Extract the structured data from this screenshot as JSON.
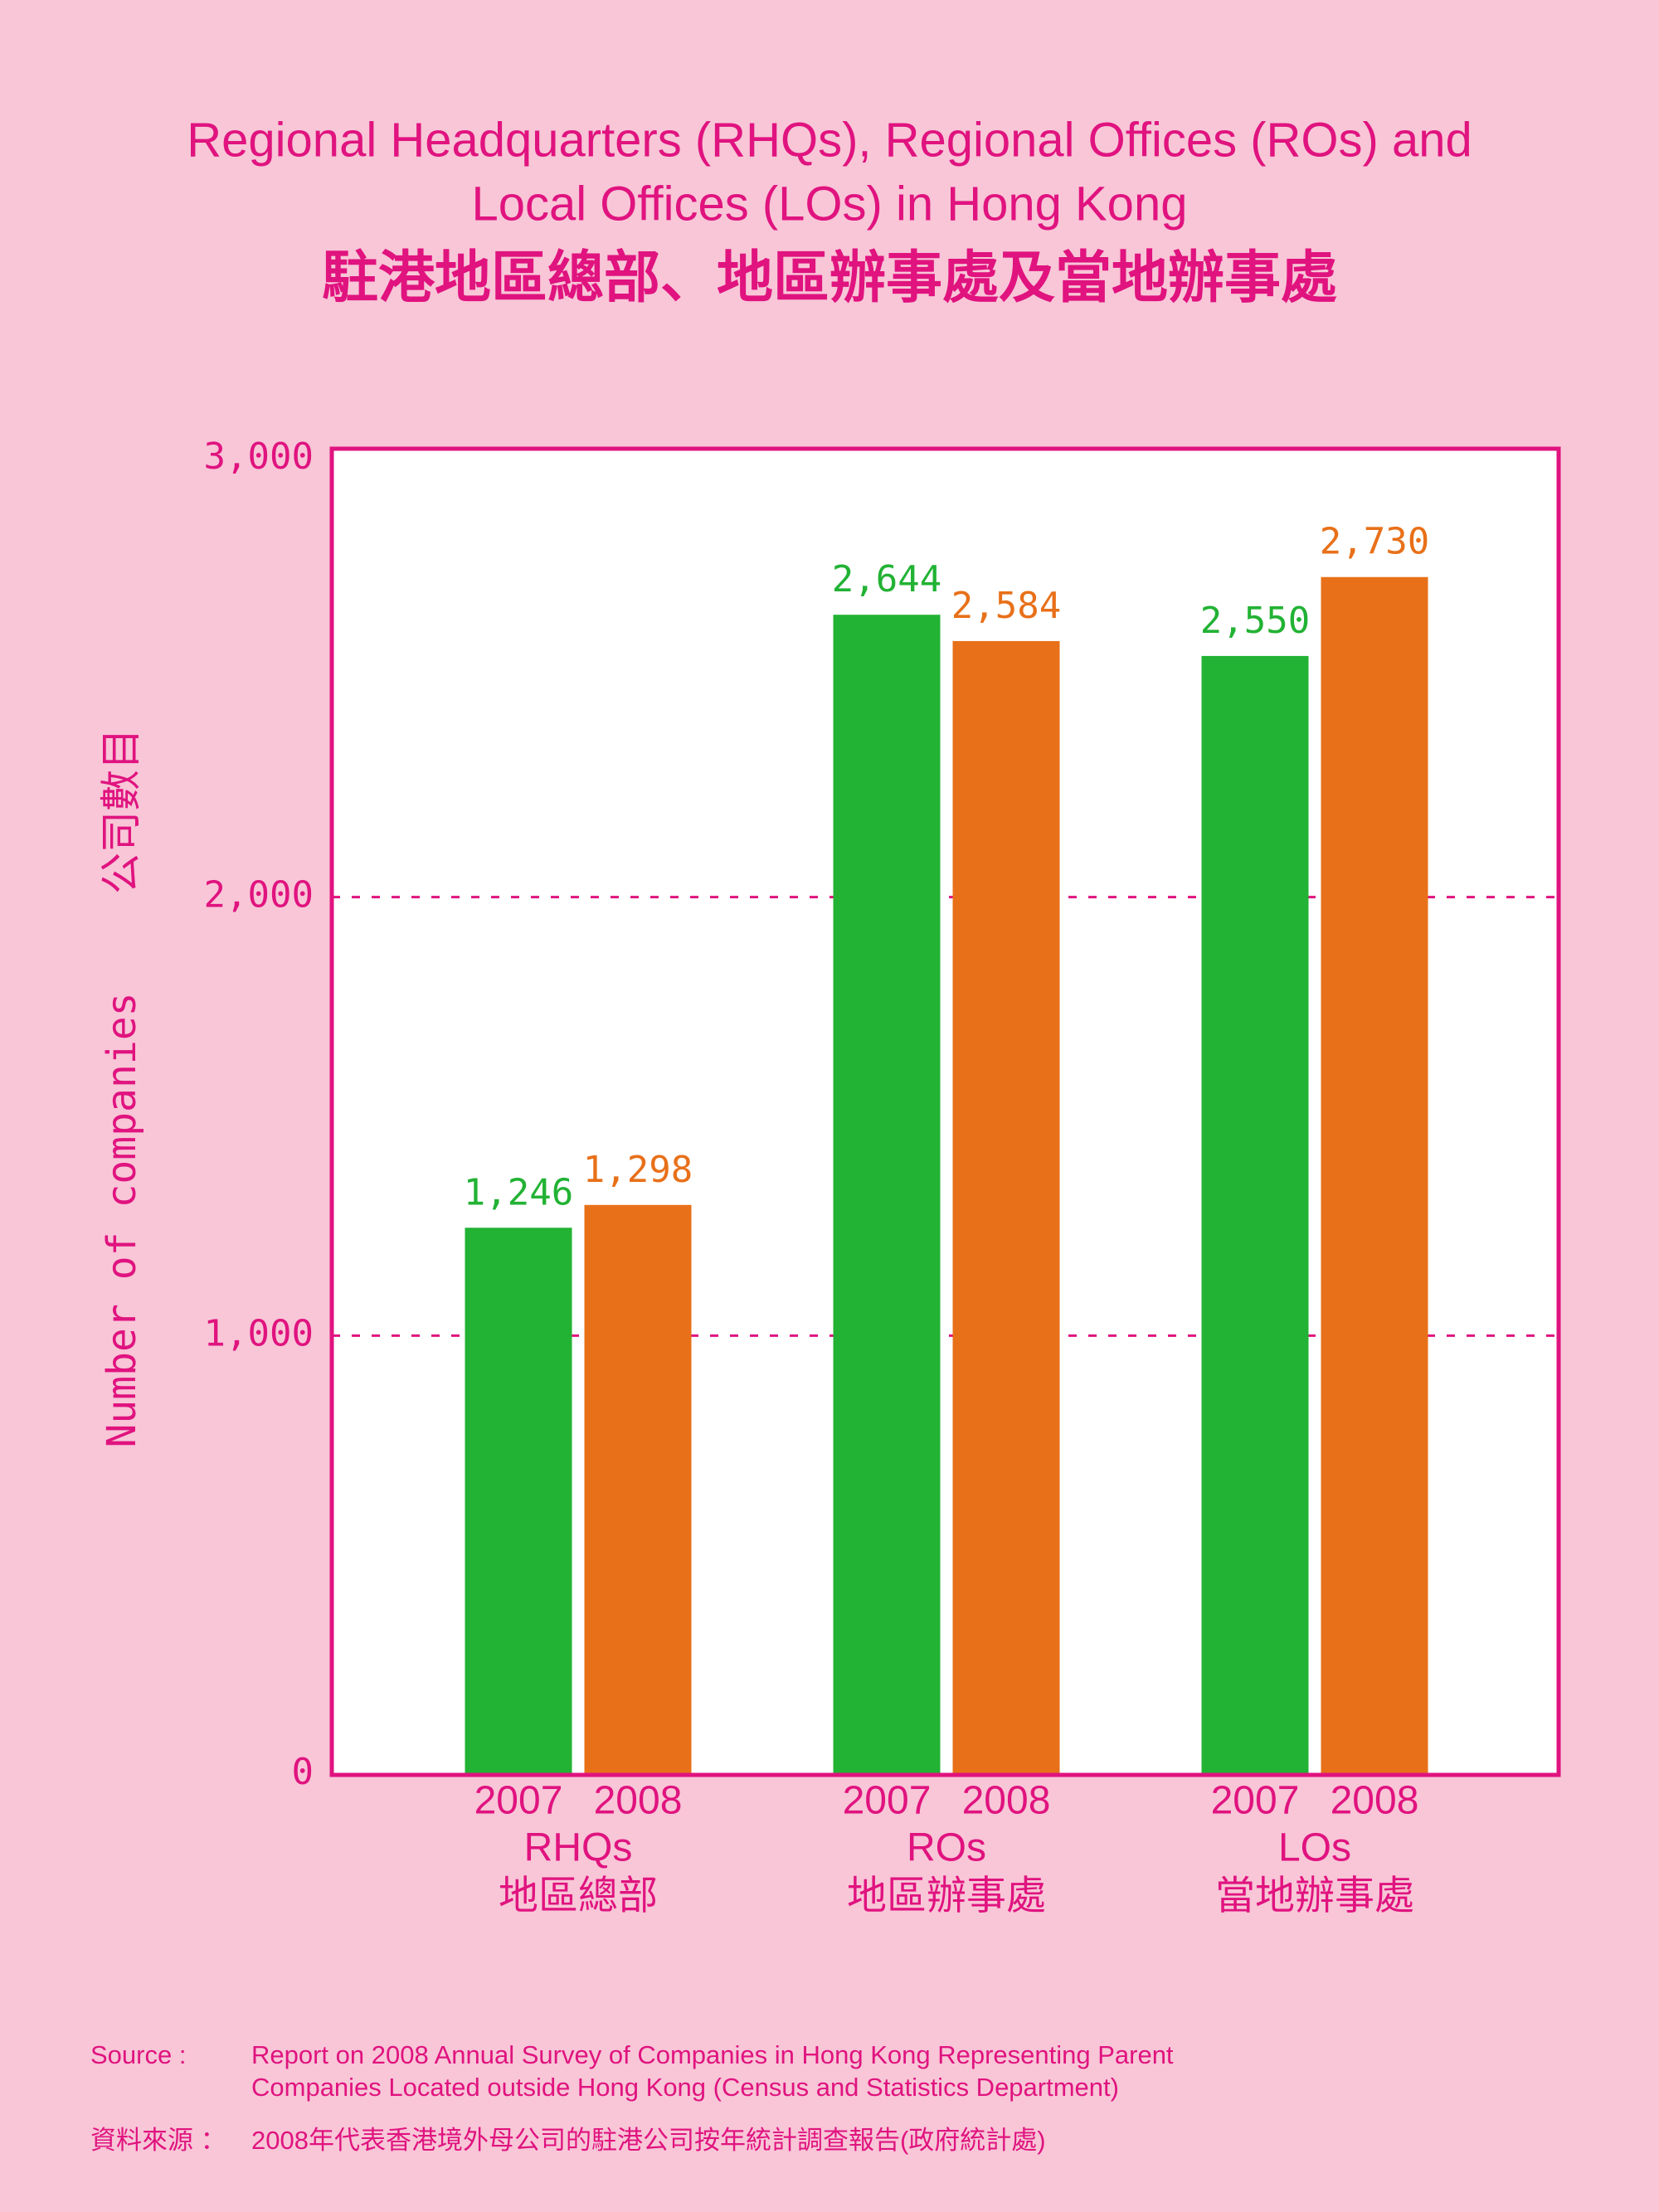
{
  "chart_data": {
    "type": "bar",
    "title": "Regional Headquarters (RHQs), Regional Offices (ROs) and",
    "title_line2": "Local Offices (LOs) in Hong Kong",
    "title_zh": "駐港地區總部、地區辦事處及當地辦事處",
    "y_label": "Number of companies",
    "y_label_zh": "公司數目",
    "categories": [
      "RHQs",
      "ROs",
      "LOs"
    ],
    "categories_zh": [
      "地區總部",
      "地區辦事處",
      "當地辦事處"
    ],
    "series": [
      {
        "name": "2007",
        "color": "#22b234",
        "values": [
          1246,
          2644,
          2550
        ],
        "value_labels": [
          "1,246",
          "2,644",
          "2,550"
        ]
      },
      {
        "name": "2008",
        "color": "#e87019",
        "values": [
          1298,
          2584,
          2730
        ],
        "value_labels": [
          "1,298",
          "2,584",
          "2,730"
        ]
      }
    ],
    "ylim": [
      0,
      3000
    ],
    "yticks": [
      0,
      {
        "value": 1000,
        "label": "1,000"
      },
      {
        "value": 2000,
        "label": "2,000"
      },
      {
        "value": 3000,
        "label": "3,000"
      }
    ],
    "grid": true,
    "source": {
      "label": "Source :",
      "lines": [
        "Report on 2008 Annual Survey of Companies in Hong Kong Representing Parent",
        "Companies Located outside Hong Kong (Census and Statistics Department)"
      ],
      "label_zh": "資料來源 ：",
      "text_zh": "2008年代表香港境外母公司的駐港公司按年統計調查報告(政府統計處)"
    }
  }
}
